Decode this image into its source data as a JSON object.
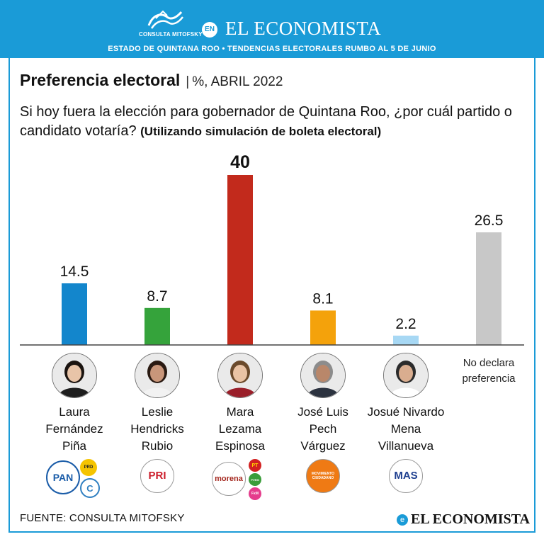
{
  "header": {
    "logo_text": "CONSULTA MITOFSKY",
    "connector": "EN",
    "brand": "EL ECONOMISTA",
    "subtitle": "ESTADO DE QUINTANA ROO  • TENDENCIAS ELECTORALES RUMBO AL 5 DE JUNIO"
  },
  "chart_data": {
    "type": "bar",
    "title": "Preferencia electoral",
    "unit_label": "%, ABRIL 2022",
    "question": "Si hoy fuera la elección para gobernador de Quintana Roo, ¿por cuál partido o candidato votaría?",
    "question_note": "(Utilizando simulación de boleta electoral)",
    "categories": [
      "Laura Fernández Piña",
      "Leslie Hendricks Rubio",
      "Mara Lezama Espinosa",
      "José Luis Pech Várguez",
      "Josué Nivardo Mena Villanueva",
      "No declara preferencia"
    ],
    "values": [
      14.5,
      8.7,
      40,
      8.1,
      2.2,
      26.5
    ],
    "value_labels": [
      "14.5",
      "8.7",
      "40",
      "8.1",
      "2.2",
      "26.5"
    ],
    "ylim": [
      0,
      40
    ],
    "xlabel": "",
    "ylabel": "",
    "colors": [
      "#1386cc",
      "#35a33b",
      "#c22a1c",
      "#f4a20b",
      "#a7d8f4",
      "#c8c8c8"
    ]
  },
  "candidates": [
    {
      "name_lines": [
        "Laura",
        "Fernández",
        "Piña"
      ],
      "parties": [
        {
          "text": "PAN",
          "color": "#1a5ca8"
        },
        {
          "text": "PRD",
          "color": "#f5c400"
        },
        {
          "text": "C",
          "color": "#2f7fc1"
        }
      ]
    },
    {
      "name_lines": [
        "Leslie",
        "Hendricks",
        "Rubio"
      ],
      "parties": [
        {
          "text": "PRI",
          "color": "#cc1d2b"
        }
      ]
    },
    {
      "name_lines": [
        "Mara",
        "Lezama",
        "Espinosa"
      ],
      "parties": [
        {
          "text": "morena",
          "color": "#a5281f"
        },
        {
          "text": "PT",
          "color": "#d32121"
        },
        {
          "text": "PVEM",
          "color": "#3a9d3a"
        },
        {
          "text": "FxM",
          "color": "#e53c8c"
        }
      ]
    },
    {
      "name_lines": [
        "José Luis",
        "Pech",
        "Várguez"
      ],
      "parties": [
        {
          "text": "MOVIMIENTO CIUDADANO",
          "color": "#ef7a14"
        }
      ]
    },
    {
      "name_lines": [
        "Josué Nivardo",
        "Mena",
        "Villanueva"
      ],
      "parties": [
        {
          "text": "MAS",
          "color": "#1e3f8f"
        }
      ]
    }
  ],
  "no_declara_lines": [
    "No declara",
    "preferencia"
  ],
  "footer": {
    "source": "FUENTE: CONSULTA MITOFSKY",
    "brand": "EL ECONOMISTA",
    "brand_icon": "e"
  }
}
